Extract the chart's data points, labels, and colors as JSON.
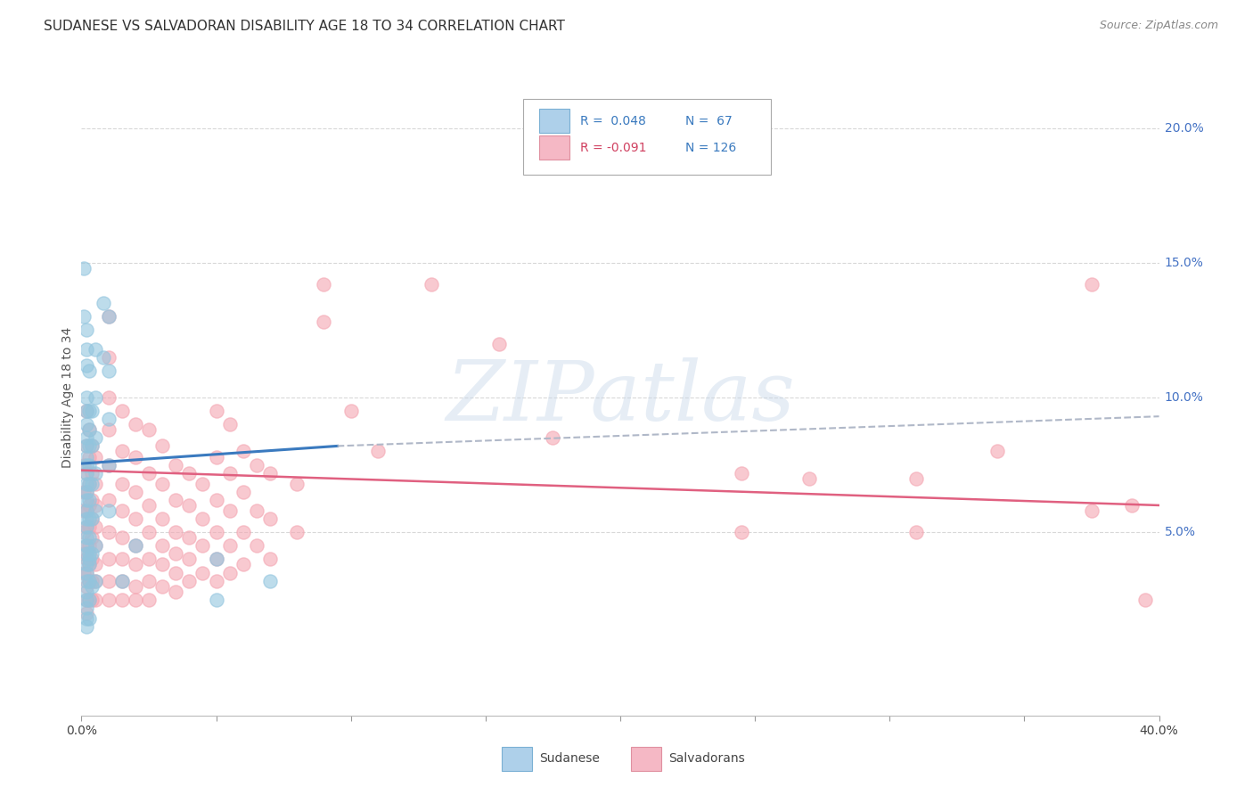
{
  "title": "SUDANESE VS SALVADORAN DISABILITY AGE 18 TO 34 CORRELATION CHART",
  "source": "Source: ZipAtlas.com",
  "ylabel": "Disability Age 18 to 34",
  "xlim": [
    0.0,
    0.4
  ],
  "ylim": [
    -0.018,
    0.218
  ],
  "xticks": [
    0.0,
    0.05,
    0.1,
    0.15,
    0.2,
    0.25,
    0.3,
    0.35,
    0.4
  ],
  "xticklabels": [
    "0.0%",
    "",
    "",
    "",
    "",
    "",
    "",
    "",
    "40.0%"
  ],
  "ytick_positions": [
    0.05,
    0.1,
    0.15,
    0.2
  ],
  "ytick_labels": [
    "5.0%",
    "10.0%",
    "15.0%",
    "20.0%"
  ],
  "sudanese_color": "#92c5de",
  "salvadoran_color": "#f4a6b2",
  "sudanese_line_color": "#3a7abf",
  "salvadoran_line_color": "#e06080",
  "dashed_line_color": "#b0b8c8",
  "watermark_text": "ZIPatlas",
  "background_color": "#ffffff",
  "grid_color": "#d8d8d8",
  "title_fontsize": 11,
  "axis_label_fontsize": 10,
  "tick_fontsize": 10,
  "right_tick_color": "#4472c4",
  "sudanese_line_start_x": 0.0,
  "sudanese_line_start_y": 0.0755,
  "sudanese_line_end_solid_x": 0.095,
  "sudanese_line_end_solid_y": 0.082,
  "sudanese_line_end_dashed_x": 0.4,
  "sudanese_line_end_dashed_y": 0.093,
  "salvadoran_line_start_x": 0.0,
  "salvadoran_line_start_y": 0.073,
  "salvadoran_line_end_x": 0.4,
  "salvadoran_line_end_y": 0.06,
  "sudanese_points": [
    [
      0.001,
      0.148
    ],
    [
      0.001,
      0.13
    ],
    [
      0.002,
      0.125
    ],
    [
      0.002,
      0.118
    ],
    [
      0.002,
      0.112
    ],
    [
      0.002,
      0.1
    ],
    [
      0.002,
      0.095
    ],
    [
      0.002,
      0.09
    ],
    [
      0.002,
      0.085
    ],
    [
      0.002,
      0.082
    ],
    [
      0.002,
      0.078
    ],
    [
      0.002,
      0.075
    ],
    [
      0.002,
      0.072
    ],
    [
      0.002,
      0.068
    ],
    [
      0.002,
      0.065
    ],
    [
      0.002,
      0.062
    ],
    [
      0.002,
      0.058
    ],
    [
      0.002,
      0.055
    ],
    [
      0.002,
      0.052
    ],
    [
      0.002,
      0.048
    ],
    [
      0.002,
      0.045
    ],
    [
      0.002,
      0.042
    ],
    [
      0.002,
      0.038
    ],
    [
      0.002,
      0.035
    ],
    [
      0.002,
      0.032
    ],
    [
      0.002,
      0.028
    ],
    [
      0.002,
      0.025
    ],
    [
      0.002,
      0.022
    ],
    [
      0.002,
      0.018
    ],
    [
      0.002,
      0.015
    ],
    [
      0.003,
      0.11
    ],
    [
      0.003,
      0.095
    ],
    [
      0.003,
      0.088
    ],
    [
      0.003,
      0.082
    ],
    [
      0.003,
      0.075
    ],
    [
      0.003,
      0.068
    ],
    [
      0.003,
      0.062
    ],
    [
      0.003,
      0.055
    ],
    [
      0.003,
      0.048
    ],
    [
      0.003,
      0.042
    ],
    [
      0.003,
      0.038
    ],
    [
      0.003,
      0.032
    ],
    [
      0.003,
      0.025
    ],
    [
      0.003,
      0.018
    ],
    [
      0.003,
      0.04
    ],
    [
      0.004,
      0.095
    ],
    [
      0.004,
      0.082
    ],
    [
      0.004,
      0.068
    ],
    [
      0.004,
      0.055
    ],
    [
      0.004,
      0.042
    ],
    [
      0.004,
      0.03
    ],
    [
      0.005,
      0.118
    ],
    [
      0.005,
      0.1
    ],
    [
      0.005,
      0.085
    ],
    [
      0.005,
      0.072
    ],
    [
      0.005,
      0.058
    ],
    [
      0.005,
      0.045
    ],
    [
      0.005,
      0.032
    ],
    [
      0.008,
      0.135
    ],
    [
      0.008,
      0.115
    ],
    [
      0.01,
      0.13
    ],
    [
      0.01,
      0.11
    ],
    [
      0.01,
      0.092
    ],
    [
      0.01,
      0.075
    ],
    [
      0.01,
      0.058
    ],
    [
      0.015,
      0.032
    ],
    [
      0.02,
      0.045
    ],
    [
      0.05,
      0.04
    ],
    [
      0.05,
      0.025
    ],
    [
      0.07,
      0.032
    ]
  ],
  "salvadoran_points": [
    [
      0.001,
      0.075
    ],
    [
      0.001,
      0.065
    ],
    [
      0.001,
      0.058
    ],
    [
      0.001,
      0.05
    ],
    [
      0.001,
      0.042
    ],
    [
      0.001,
      0.035
    ],
    [
      0.002,
      0.095
    ],
    [
      0.002,
      0.082
    ],
    [
      0.002,
      0.072
    ],
    [
      0.002,
      0.065
    ],
    [
      0.002,
      0.058
    ],
    [
      0.002,
      0.052
    ],
    [
      0.002,
      0.045
    ],
    [
      0.002,
      0.04
    ],
    [
      0.002,
      0.035
    ],
    [
      0.002,
      0.03
    ],
    [
      0.002,
      0.025
    ],
    [
      0.002,
      0.02
    ],
    [
      0.003,
      0.088
    ],
    [
      0.003,
      0.078
    ],
    [
      0.003,
      0.068
    ],
    [
      0.003,
      0.06
    ],
    [
      0.003,
      0.052
    ],
    [
      0.003,
      0.045
    ],
    [
      0.003,
      0.038
    ],
    [
      0.003,
      0.032
    ],
    [
      0.003,
      0.025
    ],
    [
      0.004,
      0.082
    ],
    [
      0.004,
      0.072
    ],
    [
      0.004,
      0.062
    ],
    [
      0.004,
      0.055
    ],
    [
      0.004,
      0.048
    ],
    [
      0.004,
      0.04
    ],
    [
      0.004,
      0.032
    ],
    [
      0.004,
      0.025
    ],
    [
      0.005,
      0.078
    ],
    [
      0.005,
      0.068
    ],
    [
      0.005,
      0.06
    ],
    [
      0.005,
      0.052
    ],
    [
      0.005,
      0.045
    ],
    [
      0.005,
      0.038
    ],
    [
      0.005,
      0.032
    ],
    [
      0.005,
      0.025
    ],
    [
      0.01,
      0.13
    ],
    [
      0.01,
      0.115
    ],
    [
      0.01,
      0.1
    ],
    [
      0.01,
      0.088
    ],
    [
      0.01,
      0.075
    ],
    [
      0.01,
      0.062
    ],
    [
      0.01,
      0.05
    ],
    [
      0.01,
      0.04
    ],
    [
      0.01,
      0.032
    ],
    [
      0.01,
      0.025
    ],
    [
      0.015,
      0.095
    ],
    [
      0.015,
      0.08
    ],
    [
      0.015,
      0.068
    ],
    [
      0.015,
      0.058
    ],
    [
      0.015,
      0.048
    ],
    [
      0.015,
      0.04
    ],
    [
      0.015,
      0.032
    ],
    [
      0.015,
      0.025
    ],
    [
      0.02,
      0.09
    ],
    [
      0.02,
      0.078
    ],
    [
      0.02,
      0.065
    ],
    [
      0.02,
      0.055
    ],
    [
      0.02,
      0.045
    ],
    [
      0.02,
      0.038
    ],
    [
      0.02,
      0.03
    ],
    [
      0.02,
      0.025
    ],
    [
      0.025,
      0.088
    ],
    [
      0.025,
      0.072
    ],
    [
      0.025,
      0.06
    ],
    [
      0.025,
      0.05
    ],
    [
      0.025,
      0.04
    ],
    [
      0.025,
      0.032
    ],
    [
      0.025,
      0.025
    ],
    [
      0.03,
      0.082
    ],
    [
      0.03,
      0.068
    ],
    [
      0.03,
      0.055
    ],
    [
      0.03,
      0.045
    ],
    [
      0.03,
      0.038
    ],
    [
      0.03,
      0.03
    ],
    [
      0.035,
      0.075
    ],
    [
      0.035,
      0.062
    ],
    [
      0.035,
      0.05
    ],
    [
      0.035,
      0.042
    ],
    [
      0.035,
      0.035
    ],
    [
      0.035,
      0.028
    ],
    [
      0.04,
      0.072
    ],
    [
      0.04,
      0.06
    ],
    [
      0.04,
      0.048
    ],
    [
      0.04,
      0.04
    ],
    [
      0.04,
      0.032
    ],
    [
      0.045,
      0.068
    ],
    [
      0.045,
      0.055
    ],
    [
      0.045,
      0.045
    ],
    [
      0.045,
      0.035
    ],
    [
      0.05,
      0.095
    ],
    [
      0.05,
      0.078
    ],
    [
      0.05,
      0.062
    ],
    [
      0.05,
      0.05
    ],
    [
      0.05,
      0.04
    ],
    [
      0.05,
      0.032
    ],
    [
      0.055,
      0.09
    ],
    [
      0.055,
      0.072
    ],
    [
      0.055,
      0.058
    ],
    [
      0.055,
      0.045
    ],
    [
      0.055,
      0.035
    ],
    [
      0.06,
      0.08
    ],
    [
      0.06,
      0.065
    ],
    [
      0.06,
      0.05
    ],
    [
      0.06,
      0.038
    ],
    [
      0.065,
      0.075
    ],
    [
      0.065,
      0.058
    ],
    [
      0.065,
      0.045
    ],
    [
      0.07,
      0.072
    ],
    [
      0.07,
      0.055
    ],
    [
      0.07,
      0.04
    ],
    [
      0.08,
      0.068
    ],
    [
      0.08,
      0.05
    ],
    [
      0.09,
      0.142
    ],
    [
      0.09,
      0.128
    ],
    [
      0.1,
      0.095
    ],
    [
      0.11,
      0.08
    ],
    [
      0.13,
      0.142
    ],
    [
      0.155,
      0.12
    ],
    [
      0.175,
      0.085
    ],
    [
      0.245,
      0.072
    ],
    [
      0.245,
      0.05
    ],
    [
      0.27,
      0.07
    ],
    [
      0.31,
      0.07
    ],
    [
      0.31,
      0.05
    ],
    [
      0.34,
      0.08
    ],
    [
      0.375,
      0.142
    ],
    [
      0.375,
      0.058
    ],
    [
      0.39,
      0.06
    ],
    [
      0.395,
      0.025
    ]
  ]
}
